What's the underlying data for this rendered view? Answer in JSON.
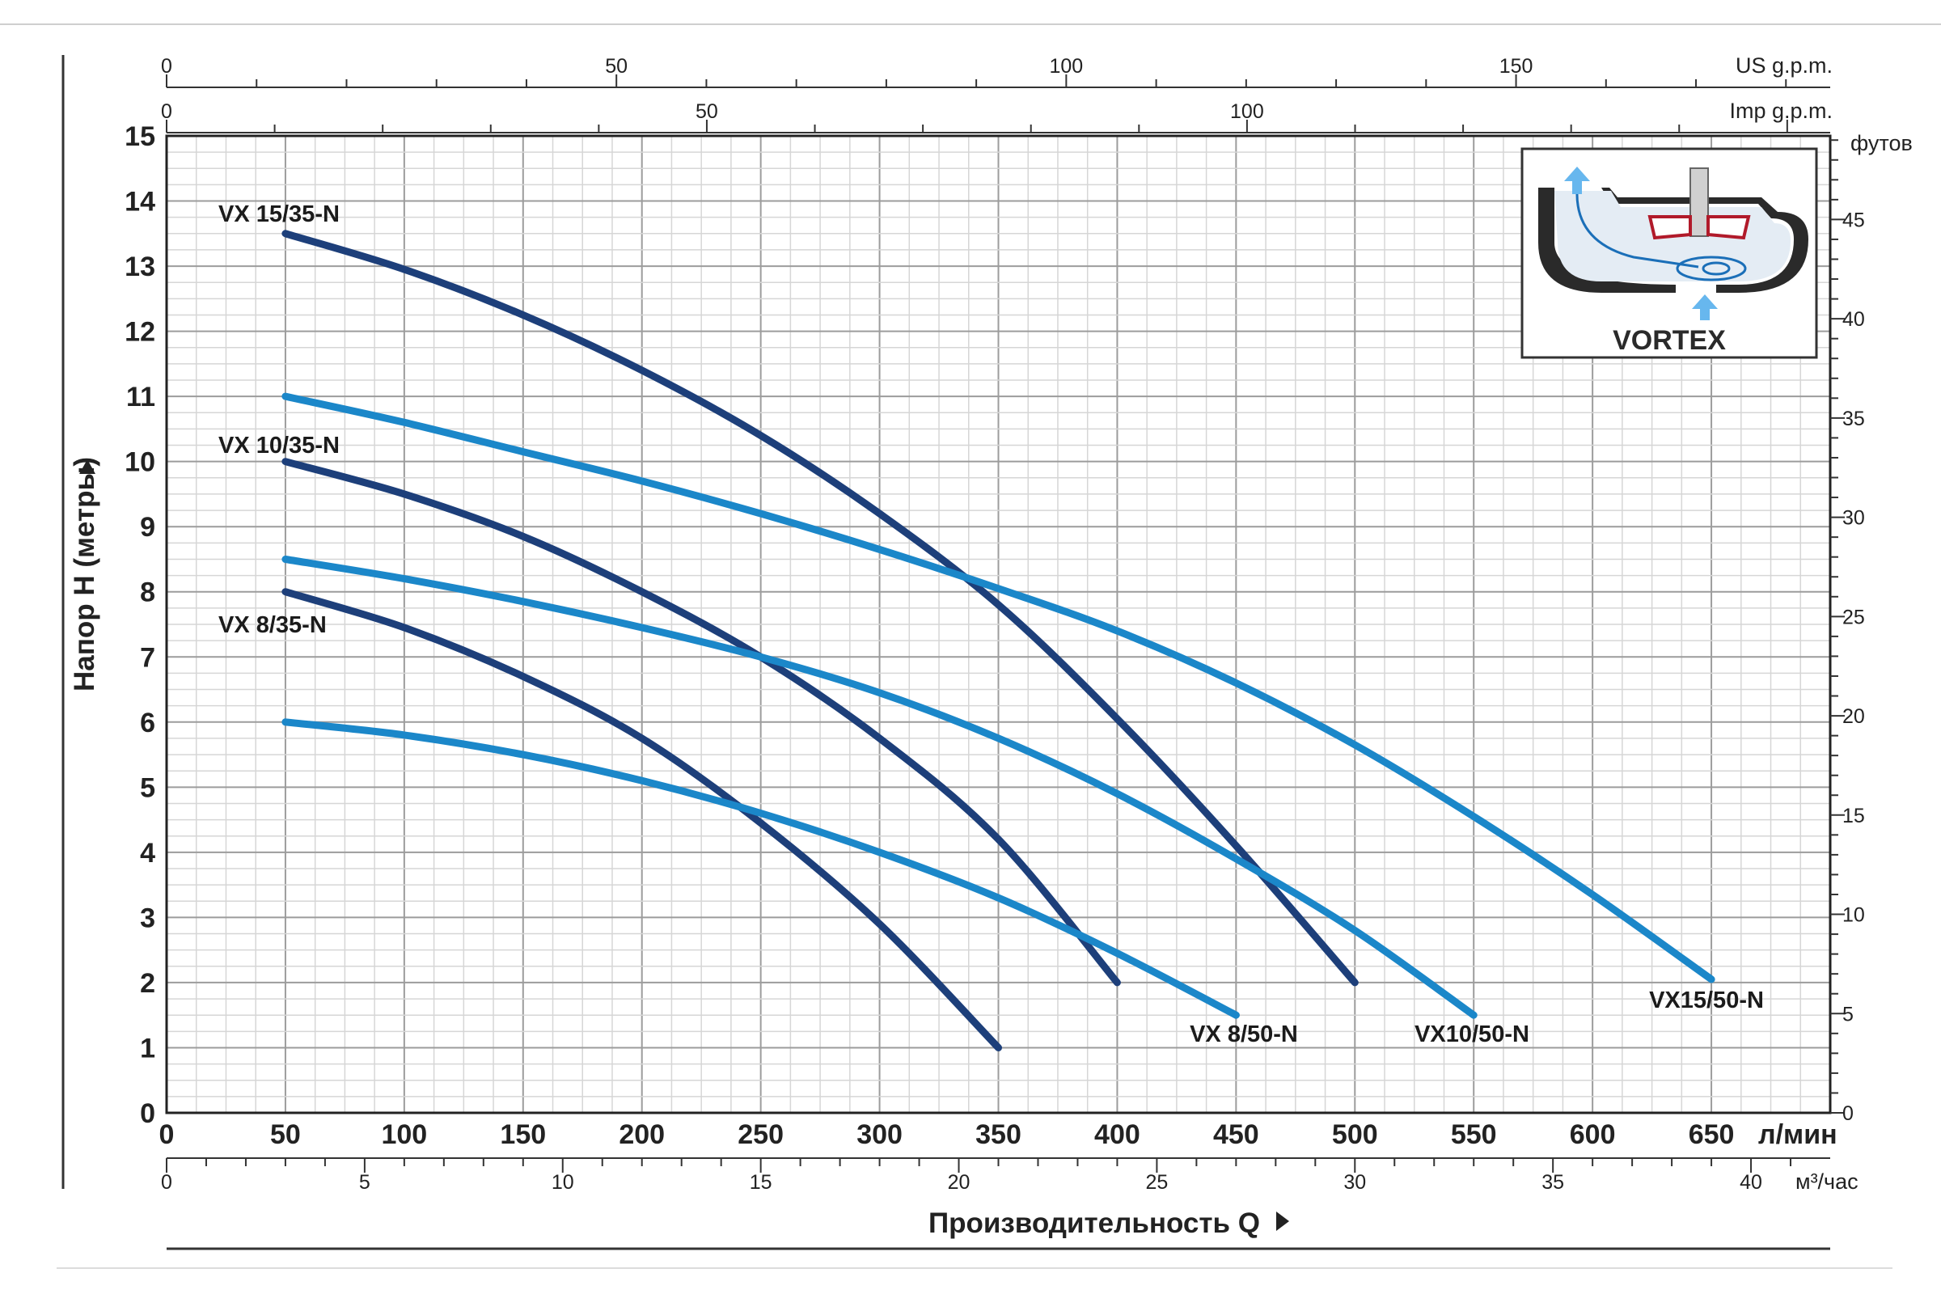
{
  "chart_data": {
    "type": "line",
    "xlabel": "Производительность  Q",
    "ylabel": "Напор H (метры)",
    "x_unit": "л/мин",
    "xlim": [
      0,
      700
    ],
    "ylim": [
      0,
      15
    ],
    "x_ticks": [
      0,
      50,
      100,
      150,
      200,
      250,
      300,
      350,
      400,
      450,
      500,
      550,
      600,
      650
    ],
    "y_ticks": [
      0,
      1,
      2,
      3,
      4,
      5,
      6,
      7,
      8,
      9,
      10,
      11,
      12,
      13,
      14,
      15
    ],
    "grid": true,
    "secondary_axes": {
      "us_gpm": {
        "label": "US g.p.m.",
        "ticks": [
          0,
          50,
          100,
          150
        ]
      },
      "imp_gpm": {
        "label": "Imp g.p.m.",
        "ticks": [
          0,
          50,
          100
        ]
      },
      "m3_per_hour": {
        "label": "м³/час",
        "ticks": [
          0,
          5,
          10,
          15,
          20,
          25,
          30,
          35,
          40
        ]
      },
      "feet": {
        "label": "футов",
        "ticks": [
          0,
          5,
          10,
          15,
          20,
          25,
          30,
          35,
          40,
          45
        ]
      }
    },
    "series": [
      {
        "name": "VX 15/35-N",
        "color": "#1d3f7a",
        "x": [
          50,
          100,
          150,
          200,
          250,
          300,
          350,
          400,
          450,
          500
        ],
        "y": [
          13.5,
          12.95,
          12.25,
          11.4,
          10.4,
          9.2,
          7.8,
          6.05,
          4.1,
          2.0
        ]
      },
      {
        "name": "VX 10/35-N",
        "color": "#1d3f7a",
        "x": [
          50,
          100,
          150,
          200,
          250,
          300,
          350,
          400
        ],
        "y": [
          10.0,
          9.5,
          8.85,
          8.0,
          7.0,
          5.75,
          4.2,
          2.0
        ]
      },
      {
        "name": "VX 8/35-N",
        "color": "#1d3f7a",
        "x": [
          50,
          100,
          150,
          200,
          250,
          300,
          350
        ],
        "y": [
          8.0,
          7.45,
          6.7,
          5.75,
          4.45,
          2.9,
          1.0
        ]
      },
      {
        "name": "VX15/50-N",
        "color": "#1b87c9",
        "x": [
          50,
          100,
          150,
          200,
          250,
          300,
          350,
          400,
          450,
          500,
          550,
          600,
          650
        ],
        "y": [
          11.0,
          10.6,
          10.15,
          9.7,
          9.2,
          8.65,
          8.05,
          7.4,
          6.6,
          5.65,
          4.55,
          3.35,
          2.05
        ]
      },
      {
        "name": "VX10/50-N",
        "color": "#1b87c9",
        "x": [
          50,
          100,
          150,
          200,
          250,
          300,
          350,
          400,
          450,
          500,
          550
        ],
        "y": [
          8.5,
          8.2,
          7.85,
          7.45,
          7.0,
          6.45,
          5.75,
          4.9,
          3.9,
          2.8,
          1.5
        ]
      },
      {
        "name": "VX 8/50-N",
        "color": "#1b87c9",
        "x": [
          50,
          100,
          150,
          200,
          250,
          300,
          350,
          400,
          450
        ],
        "y": [
          6.0,
          5.8,
          5.5,
          5.1,
          4.6,
          4.0,
          3.3,
          2.45,
          1.5
        ]
      }
    ]
  },
  "inset": {
    "label": "VORTEX"
  }
}
